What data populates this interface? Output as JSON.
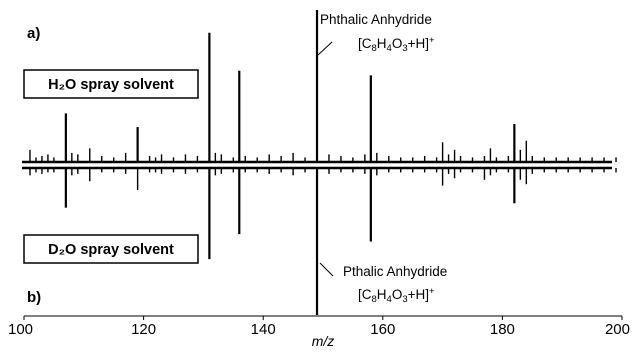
{
  "chart_data": {
    "type": "bar",
    "xlabel": "m/z",
    "xlim": [
      100,
      200
    ],
    "x_ticks": [
      "100",
      "120",
      "140",
      "160",
      "180",
      "200"
    ],
    "panels": [
      {
        "label": "a)",
        "solvent": "H₂O spray solvent",
        "direction": "up"
      },
      {
        "label": "b)",
        "solvent": "D₂O spray solvent",
        "direction": "down"
      }
    ],
    "annotations": [
      {
        "name": "Phthalic Anhydride",
        "formula": "[C₈H₄O₃+H]⁺",
        "x": 149,
        "panel": "a"
      },
      {
        "name": "Pthalic Anhydride",
        "formula": "[C₈H₄O₃+H]⁺",
        "x": 149,
        "panel": "b"
      }
    ],
    "units": "relative intensity (unlabeled axis, 0-100)",
    "series": [
      {
        "name": "H₂O spray solvent",
        "x": [
          101,
          102,
          103,
          104,
          105,
          107,
          108,
          109,
          111,
          113,
          115,
          117,
          119,
          121,
          122,
          123,
          125,
          127,
          129,
          131,
          132,
          133,
          135,
          136,
          137,
          139,
          141,
          143,
          145,
          147,
          149,
          151,
          153,
          155,
          157,
          158,
          159,
          161,
          163,
          165,
          167,
          169,
          170,
          171,
          172,
          173,
          175,
          177,
          178,
          179,
          181,
          182,
          183,
          184,
          185,
          187,
          189,
          191,
          193,
          195,
          197,
          199
        ],
        "values": [
          8,
          3,
          4,
          5,
          3,
          32,
          6,
          5,
          9,
          4,
          3,
          6,
          23,
          4,
          3,
          5,
          3,
          5,
          4,
          85,
          6,
          5,
          3,
          60,
          4,
          3,
          5,
          4,
          6,
          3,
          100,
          5,
          4,
          3,
          5,
          57,
          6,
          4,
          3,
          3,
          4,
          3,
          13,
          5,
          8,
          4,
          3,
          4,
          9,
          3,
          4,
          25,
          8,
          14,
          4,
          3,
          3,
          3,
          3,
          3,
          3,
          3
        ]
      },
      {
        "name": "D₂O spray solvent",
        "x": [
          101,
          102,
          103,
          104,
          105,
          107,
          108,
          109,
          111,
          113,
          115,
          117,
          119,
          121,
          122,
          123,
          125,
          127,
          129,
          131,
          132,
          133,
          135,
          136,
          137,
          139,
          141,
          143,
          145,
          147,
          149,
          151,
          153,
          155,
          157,
          158,
          159,
          161,
          163,
          165,
          167,
          169,
          170,
          171,
          172,
          173,
          175,
          177,
          178,
          179,
          181,
          182,
          183,
          184,
          185,
          187,
          189,
          191,
          193,
          195,
          197,
          199
        ],
        "values": [
          5,
          3,
          4,
          3,
          3,
          27,
          5,
          4,
          9,
          3,
          3,
          4,
          15,
          3,
          3,
          4,
          3,
          4,
          3,
          62,
          5,
          4,
          3,
          45,
          3,
          3,
          4,
          3,
          5,
          3,
          100,
          4,
          3,
          3,
          4,
          50,
          5,
          3,
          3,
          3,
          3,
          3,
          12,
          4,
          7,
          3,
          3,
          8,
          5,
          3,
          3,
          24,
          8,
          11,
          4,
          3,
          3,
          3,
          3,
          3,
          3,
          3
        ]
      }
    ]
  }
}
